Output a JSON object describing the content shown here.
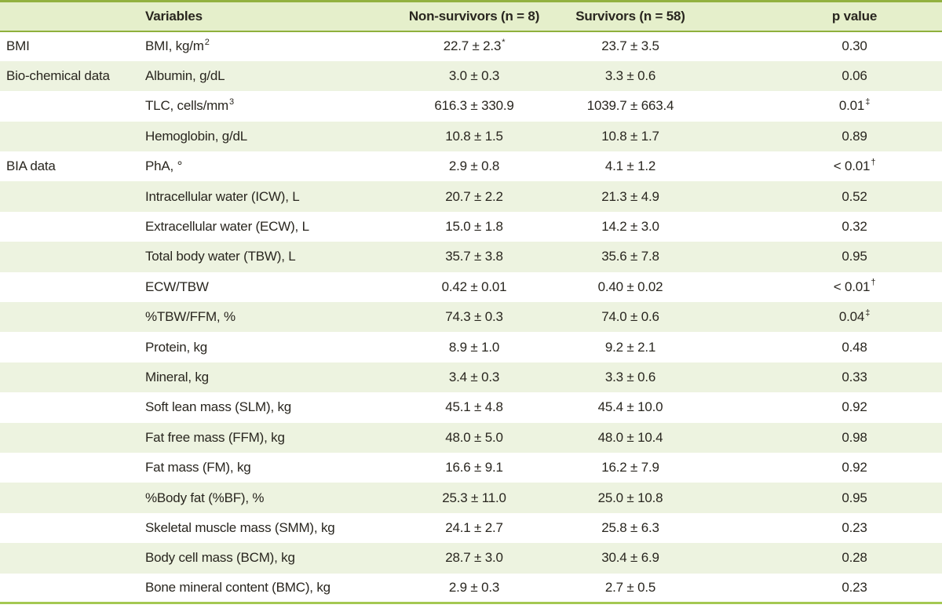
{
  "colors": {
    "rule_top": "#92b140",
    "rule_under_header": "#8fb03c",
    "rule_bottom": "#a4c852",
    "header_bg": "#e5efcb",
    "stripe_bg": "#edf3e0",
    "text": "#29261f"
  },
  "table": {
    "columns": {
      "variables": "Variables",
      "non_survivors": "Non-survivors (n = 8)",
      "survivors": "Survivors (n = 58)",
      "p_value": "p value"
    },
    "rows": [
      {
        "group": "BMI",
        "variable": "BMI, kg/m",
        "variable_sup": "2",
        "non_survivors": "22.7 ± 2.3",
        "non_survivors_sup": "*",
        "survivors": "23.7 ± 3.5",
        "p": "0.30"
      },
      {
        "group": "Bio-chemical data",
        "variable": "Albumin, g/dL",
        "non_survivors": "3.0 ± 0.3",
        "survivors": "3.3 ± 0.6",
        "p": "0.06"
      },
      {
        "group": "",
        "variable": "TLC, cells/mm",
        "variable_sup": "3",
        "non_survivors": "616.3 ± 330.9",
        "survivors": "1039.7 ± 663.4",
        "p": "0.01",
        "p_sup": "‡"
      },
      {
        "group": "",
        "variable": "Hemoglobin, g/dL",
        "non_survivors": "10.8 ± 1.5",
        "survivors": "10.8 ± 1.7",
        "p": "0.89"
      },
      {
        "group": "BIA data",
        "variable": "PhA, °",
        "non_survivors": "2.9 ± 0.8",
        "survivors": "4.1 ± 1.2",
        "p": "< 0.01",
        "p_sup": "†"
      },
      {
        "group": "",
        "variable": "Intracellular water (ICW), L",
        "non_survivors": "20.7 ± 2.2",
        "survivors": "21.3 ± 4.9",
        "p": "0.52"
      },
      {
        "group": "",
        "variable": "Extracellular water (ECW), L",
        "non_survivors": "15.0 ± 1.8",
        "survivors": "14.2 ± 3.0",
        "p": "0.32"
      },
      {
        "group": "",
        "variable": "Total body water (TBW), L",
        "non_survivors": "35.7 ± 3.8",
        "survivors": "35.6 ± 7.8",
        "p": "0.95"
      },
      {
        "group": "",
        "variable": "ECW/TBW",
        "non_survivors": "0.42 ± 0.01",
        "survivors": "0.40 ± 0.02",
        "p": "< 0.01",
        "p_sup": "†"
      },
      {
        "group": "",
        "variable": "%TBW/FFM, %",
        "non_survivors": "74.3 ± 0.3",
        "survivors": "74.0 ± 0.6",
        "p": "0.04",
        "p_sup": "‡"
      },
      {
        "group": "",
        "variable": "Protein, kg",
        "non_survivors": "8.9 ± 1.0",
        "survivors": "9.2 ± 2.1",
        "p": "0.48"
      },
      {
        "group": "",
        "variable": "Mineral, kg",
        "non_survivors": "3.4 ± 0.3",
        "survivors": "3.3 ± 0.6",
        "p": "0.33"
      },
      {
        "group": "",
        "variable": "Soft lean mass (SLM), kg",
        "non_survivors": "45.1 ± 4.8",
        "survivors": "45.4 ± 10.0",
        "p": "0.92"
      },
      {
        "group": "",
        "variable": "Fat free mass (FFM), kg",
        "non_survivors": "48.0 ± 5.0",
        "survivors": "48.0 ± 10.4",
        "p": "0.98"
      },
      {
        "group": "",
        "variable": "Fat mass (FM), kg",
        "non_survivors": "16.6 ± 9.1",
        "survivors": "16.2 ± 7.9",
        "p": "0.92"
      },
      {
        "group": "",
        "variable": "%Body fat (%BF), %",
        "non_survivors": "25.3 ± 11.0",
        "survivors": "25.0 ± 10.8",
        "p": "0.95"
      },
      {
        "group": "",
        "variable": "Skeletal muscle mass (SMM), kg",
        "non_survivors": "24.1 ± 2.7",
        "survivors": "25.8 ± 6.3",
        "p": "0.23"
      },
      {
        "group": "",
        "variable": "Body cell mass (BCM), kg",
        "non_survivors": "28.7 ± 3.0",
        "survivors": "30.4 ± 6.9",
        "p": "0.28"
      },
      {
        "group": "",
        "variable": "Bone mineral content (BMC), kg",
        "non_survivors": "2.9 ± 0.3",
        "survivors": "2.7 ± 0.5",
        "p": "0.23"
      }
    ]
  }
}
